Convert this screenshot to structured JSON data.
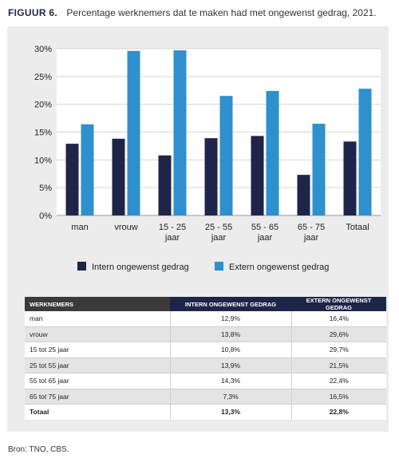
{
  "figure": {
    "label": "FIGUUR 6.",
    "title": "Percentage werknemers dat te maken had met ongewenst gedrag, 2021."
  },
  "chart_data": {
    "type": "bar",
    "categories": [
      [
        "man"
      ],
      [
        "vrouw"
      ],
      [
        "15 - 25",
        "jaar"
      ],
      [
        "25 - 55",
        "jaar"
      ],
      [
        "55 - 65",
        "jaar"
      ],
      [
        "65 - 75",
        "jaar"
      ],
      [
        "Totaal"
      ]
    ],
    "series": [
      {
        "name": "Intern ongewenst gedrag",
        "values": [
          12.9,
          13.8,
          10.8,
          13.9,
          14.3,
          7.3,
          13.3
        ],
        "color": "#1e2549"
      },
      {
        "name": "Extern ongewenst gedrag",
        "values": [
          16.4,
          29.6,
          29.7,
          21.5,
          22.4,
          16.5,
          22.8
        ],
        "color": "#2e90cc"
      }
    ],
    "y_ticks": [
      "0%",
      "5%",
      "10%",
      "15%",
      "20%",
      "25%",
      "30%"
    ],
    "ylim": [
      0,
      30
    ],
    "grid": true,
    "legend_position": "bottom"
  },
  "table": {
    "headers": [
      "WERKNEMERS",
      "INTERN ONGEWENST GEDRAG",
      "EXTERN ONGEWENST GEDRAG"
    ],
    "rows": [
      [
        "man",
        "12,9%",
        "16,4%"
      ],
      [
        "vrouw",
        "13,8%",
        "29,6%"
      ],
      [
        "15 tot 25 jaar",
        "10,8%",
        "29,7%"
      ],
      [
        "25 tot 55 jaar",
        "13,9%",
        "21,5%"
      ],
      [
        "55 tot 65 jaar",
        "14,3%",
        "22,4%"
      ],
      [
        "65 tot 75 jaar",
        "7,3%",
        "16,5%"
      ]
    ],
    "total": [
      "Totaal",
      "13,3%",
      "22,8%"
    ]
  },
  "source": "Bron: TNO, CBS."
}
